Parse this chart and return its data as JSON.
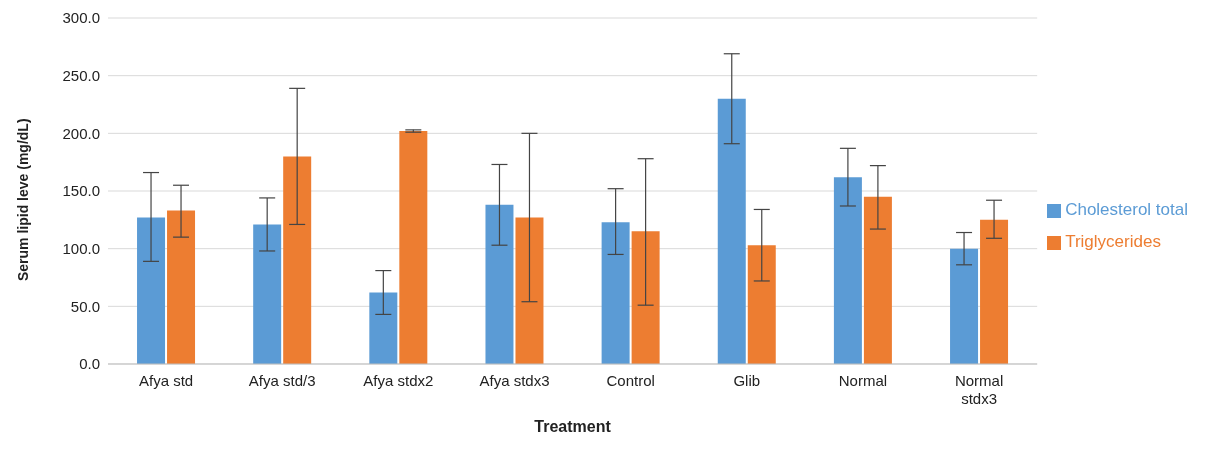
{
  "chart_data": {
    "type": "bar",
    "xlabel": "Treatment",
    "ylabel": "Serum lipid leve (mg/dL)",
    "categories": [
      "Afya std",
      "Afya std/3",
      "Afya stdx2",
      "Afya stdx3",
      "Control",
      "Glib",
      "Normal",
      "Normal stdx3"
    ],
    "series": [
      {
        "name": "Cholesterol total",
        "color": "#5b9bd5",
        "values": [
          127,
          121,
          62,
          138,
          123,
          230,
          162,
          100
        ],
        "errors": [
          [
            89,
            166
          ],
          [
            98,
            144
          ],
          [
            43,
            81
          ],
          [
            103,
            173
          ],
          [
            95,
            152
          ],
          [
            191,
            269
          ],
          [
            137,
            187
          ],
          [
            86,
            114
          ]
        ]
      },
      {
        "name": "Triglycerides",
        "color": "#ed7d31",
        "values": [
          133,
          180,
          202,
          127,
          115,
          103,
          145,
          125
        ],
        "errors": [
          [
            110,
            155
          ],
          [
            121,
            239
          ],
          [
            201,
            203
          ],
          [
            54,
            200
          ],
          [
            51,
            178
          ],
          [
            72,
            134
          ],
          [
            117,
            172
          ],
          [
            109,
            142
          ]
        ]
      }
    ],
    "ylim": [
      0,
      300
    ],
    "yticks": [
      {
        "value": 0,
        "label": "0.0"
      },
      {
        "value": 50,
        "label": "50.0"
      },
      {
        "value": 100,
        "label": "100.0"
      },
      {
        "value": 150,
        "label": "150.0"
      },
      {
        "value": 200,
        "label": "200.0"
      },
      {
        "value": 250,
        "label": "250.0"
      },
      {
        "value": 300,
        "label": "300.0"
      }
    ],
    "grid": "y",
    "legend": "right"
  }
}
